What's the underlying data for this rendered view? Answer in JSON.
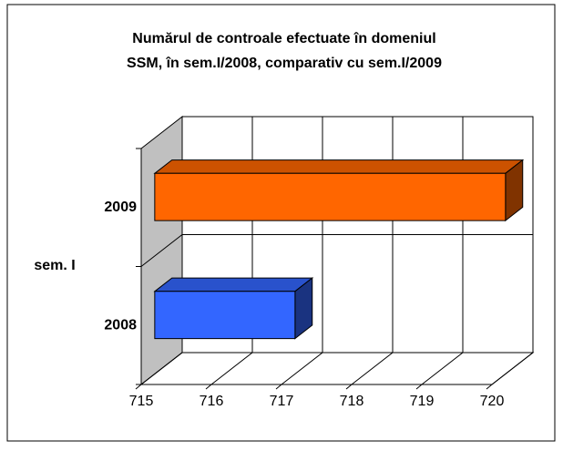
{
  "chart_data": {
    "type": "bar3d_horizontal",
    "title": [
      "Numărul de controale efectuate în domeniul",
      "SSM, în  sem.I/2008, comparativ cu sem.I/2009"
    ],
    "y_label": "sem. I",
    "categories": [
      "2008",
      "2009"
    ],
    "values": [
      717,
      720
    ],
    "colors": [
      "#3366ff",
      "#ff6600"
    ],
    "xlim": [
      715,
      720
    ],
    "xticks": [
      715,
      716,
      717,
      718,
      719,
      720
    ],
    "grid": true
  }
}
